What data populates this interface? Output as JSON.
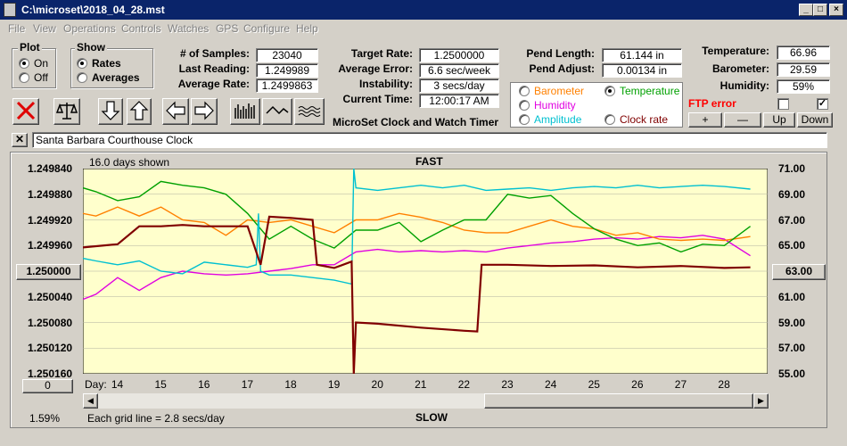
{
  "title": "C:\\microset\\2018_04_28.mst",
  "menu": [
    "File",
    "View",
    "Operations",
    "Controls",
    "Watches",
    "GPS",
    "Configure",
    "Help"
  ],
  "plot": {
    "title": "Plot",
    "on": "On",
    "off": "Off"
  },
  "show": {
    "title": "Show",
    "rates": "Rates",
    "averages": "Averages"
  },
  "stats": {
    "samples_label": "# of Samples:",
    "samples": "23040",
    "last_label": "Last Reading:",
    "last": "1.249989",
    "avg_label": "Average Rate:",
    "avg": "1.2499863"
  },
  "target": {
    "rate_label": "Target Rate:",
    "rate": "1.2500000",
    "err_label": "Average Error:",
    "err": "6.6 sec/week",
    "inst_label": "Instability:",
    "inst": "3 secs/day",
    "time_label": "Current Time:",
    "time": "12:00:17 AM",
    "app_name": "MicroSet Clock and Watch Timer"
  },
  "pend": {
    "len_label": "Pend Length:",
    "len": "61.144 in",
    "adj_label": "Pend Adjust:",
    "adj": "0.00134 in"
  },
  "sensors": {
    "barometer": "Barometer",
    "temperature": "Temperature",
    "humidity": "Humidity",
    "amplitude": "Amplitude",
    "clockrate": "Clock rate"
  },
  "env": {
    "temp_label": "Temperature:",
    "temp": "66.96",
    "baro_label": "Barometer:",
    "baro": "29.59",
    "hum_label": "Humidity:",
    "hum": "59%",
    "ftp": "FTP error"
  },
  "adjust_buttons": [
    "+",
    "—",
    "Up",
    "Down"
  ],
  "clock_name": "Santa Barbara Courthouse Clock",
  "chart": {
    "top": "FAST",
    "bottom": "SLOW",
    "days_shown": "16.0 days shown",
    "grid_note": "Each grid line = 2.8 secs/day",
    "pct": "1.59%",
    "mid_btn": "1.250000",
    "left_btn": "0",
    "right_btn": "63.00",
    "day_label": "Day:"
  },
  "colors": {
    "barometer": "#ff8000",
    "temperature": "#00a000",
    "humidity": "#e000e0",
    "amplitude": "#00c0d0",
    "clockrate": "#800000",
    "ftp": "#ff0000",
    "plotbg": "#ffffcc"
  },
  "chart_data": {
    "type": "line",
    "x_label": "Day",
    "xlim": [
      13.2,
      29.0
    ],
    "x_ticks": [
      14,
      15,
      16,
      17,
      18,
      19,
      20,
      21,
      22,
      23,
      24,
      25,
      26,
      27,
      28
    ],
    "y_left_ticks": [
      "1.249840",
      "1.249880",
      "1.249920",
      "1.249960",
      "1.250000",
      "1.250040",
      "1.250080",
      "1.250120",
      "1.250160"
    ],
    "y_left_lim": [
      1.24984,
      1.25016
    ],
    "y_right_ticks": [
      "71.00",
      "69.00",
      "67.00",
      "65.00",
      "63.00",
      "61.00",
      "59.00",
      "57.00",
      "55.00"
    ],
    "y_right_lim": [
      55,
      71
    ],
    "series": [
      {
        "name": "Clock rate",
        "axis": "left",
        "color": "#800000",
        "x": [
          13.2,
          14.0,
          14.5,
          15.0,
          15.5,
          16.0,
          16.5,
          17.0,
          17.3,
          17.5,
          18.0,
          18.5,
          18.6,
          19.0,
          19.4,
          19.45,
          19.5,
          20.0,
          21.0,
          22.0,
          22.3,
          22.4,
          22.5,
          23.0,
          24.0,
          25.0,
          26.0,
          27.0,
          28.0,
          28.6
        ],
        "y": [
          1.249963,
          1.249958,
          1.24993,
          1.24993,
          1.249928,
          1.24993,
          1.24993,
          1.24993,
          1.24999,
          1.249915,
          1.249917,
          1.24992,
          1.24999,
          1.249995,
          1.249985,
          1.25016,
          1.25008,
          1.250082,
          1.250088,
          1.250093,
          1.250094,
          1.24999,
          1.24999,
          1.24999,
          1.249992,
          1.249991,
          1.249994,
          1.249992,
          1.249995,
          1.249994
        ]
      },
      {
        "name": "Temperature",
        "axis": "right",
        "color": "#00a000",
        "x": [
          13.2,
          13.5,
          14.0,
          14.5,
          15.0,
          15.5,
          16.0,
          16.5,
          17.0,
          17.5,
          18.0,
          18.5,
          19.0,
          19.5,
          20.0,
          20.5,
          21.0,
          21.5,
          22.0,
          22.5,
          23.0,
          23.5,
          24.0,
          24.5,
          25.0,
          25.5,
          26.0,
          26.5,
          27.0,
          27.5,
          28.0,
          28.6
        ],
        "y": [
          69.5,
          69.2,
          68.5,
          68.8,
          70.0,
          69.7,
          69.5,
          69.0,
          67.5,
          65.5,
          66.5,
          65.5,
          64.8,
          66.2,
          66.2,
          66.8,
          65.3,
          66.2,
          67.0,
          67.0,
          69.0,
          68.7,
          68.9,
          67.5,
          66.3,
          65.5,
          65.0,
          65.2,
          64.5,
          65.1,
          65.0,
          66.5
        ]
      },
      {
        "name": "Barometer",
        "axis": "right",
        "color": "#ff8000",
        "x": [
          13.2,
          13.5,
          14.0,
          14.5,
          15.0,
          15.5,
          16.0,
          16.5,
          17.0,
          17.5,
          18.0,
          18.5,
          19.0,
          19.5,
          20.0,
          20.5,
          21.0,
          21.5,
          22.0,
          22.5,
          23.0,
          23.5,
          24.0,
          24.5,
          25.0,
          25.5,
          26.0,
          26.5,
          27.0,
          27.5,
          28.0,
          28.6
        ],
        "y": [
          67.5,
          67.3,
          68.0,
          67.3,
          68.0,
          67.0,
          66.8,
          65.8,
          67.0,
          66.8,
          67.0,
          66.5,
          66.0,
          67.0,
          67.0,
          67.5,
          67.2,
          66.8,
          66.2,
          66.0,
          66.0,
          66.5,
          67.0,
          66.5,
          66.3,
          65.8,
          66.0,
          65.5,
          65.4,
          65.5,
          65.4,
          65.7
        ]
      },
      {
        "name": "Humidity",
        "axis": "right",
        "color": "#e000e0",
        "x": [
          13.2,
          13.5,
          14.0,
          14.5,
          15.0,
          15.5,
          16.0,
          16.5,
          17.0,
          17.5,
          18.0,
          18.5,
          19.0,
          19.5,
          20.0,
          20.5,
          21.0,
          21.5,
          22.0,
          22.5,
          23.0,
          23.5,
          24.0,
          24.5,
          25.0,
          25.5,
          26.0,
          26.5,
          27.0,
          27.5,
          28.0,
          28.6
        ],
        "y": [
          60.8,
          61.2,
          62.5,
          61.5,
          62.5,
          63.0,
          62.8,
          62.7,
          62.8,
          63.0,
          63.2,
          63.5,
          63.5,
          64.5,
          64.7,
          64.5,
          64.6,
          64.5,
          64.6,
          64.5,
          64.8,
          65.0,
          65.2,
          65.3,
          65.5,
          65.6,
          65.5,
          65.7,
          65.6,
          65.8,
          65.5,
          64.2
        ]
      },
      {
        "name": "Amplitude",
        "axis": "right",
        "color": "#00c0d0",
        "x": [
          13.2,
          13.5,
          14.0,
          14.5,
          15.0,
          15.5,
          16.0,
          16.5,
          17.0,
          17.2,
          17.25,
          17.3,
          17.5,
          18.0,
          18.5,
          19.0,
          19.4,
          19.45,
          19.5,
          20.0,
          20.5,
          21.0,
          21.5,
          22.0,
          22.5,
          23.0,
          23.5,
          24.0,
          24.5,
          25.0,
          25.5,
          26.0,
          26.5,
          27.0,
          27.5,
          28.0,
          28.6
        ],
        "y": [
          64.0,
          63.8,
          63.5,
          63.8,
          63.0,
          62.8,
          63.7,
          63.5,
          63.3,
          63.5,
          67.5,
          63.0,
          62.7,
          62.7,
          62.5,
          62.3,
          62.0,
          71.0,
          69.5,
          69.3,
          69.5,
          69.7,
          69.5,
          69.7,
          69.3,
          69.4,
          69.5,
          69.3,
          69.5,
          69.6,
          69.5,
          69.7,
          69.5,
          69.6,
          69.7,
          69.6,
          69.4
        ]
      }
    ]
  }
}
